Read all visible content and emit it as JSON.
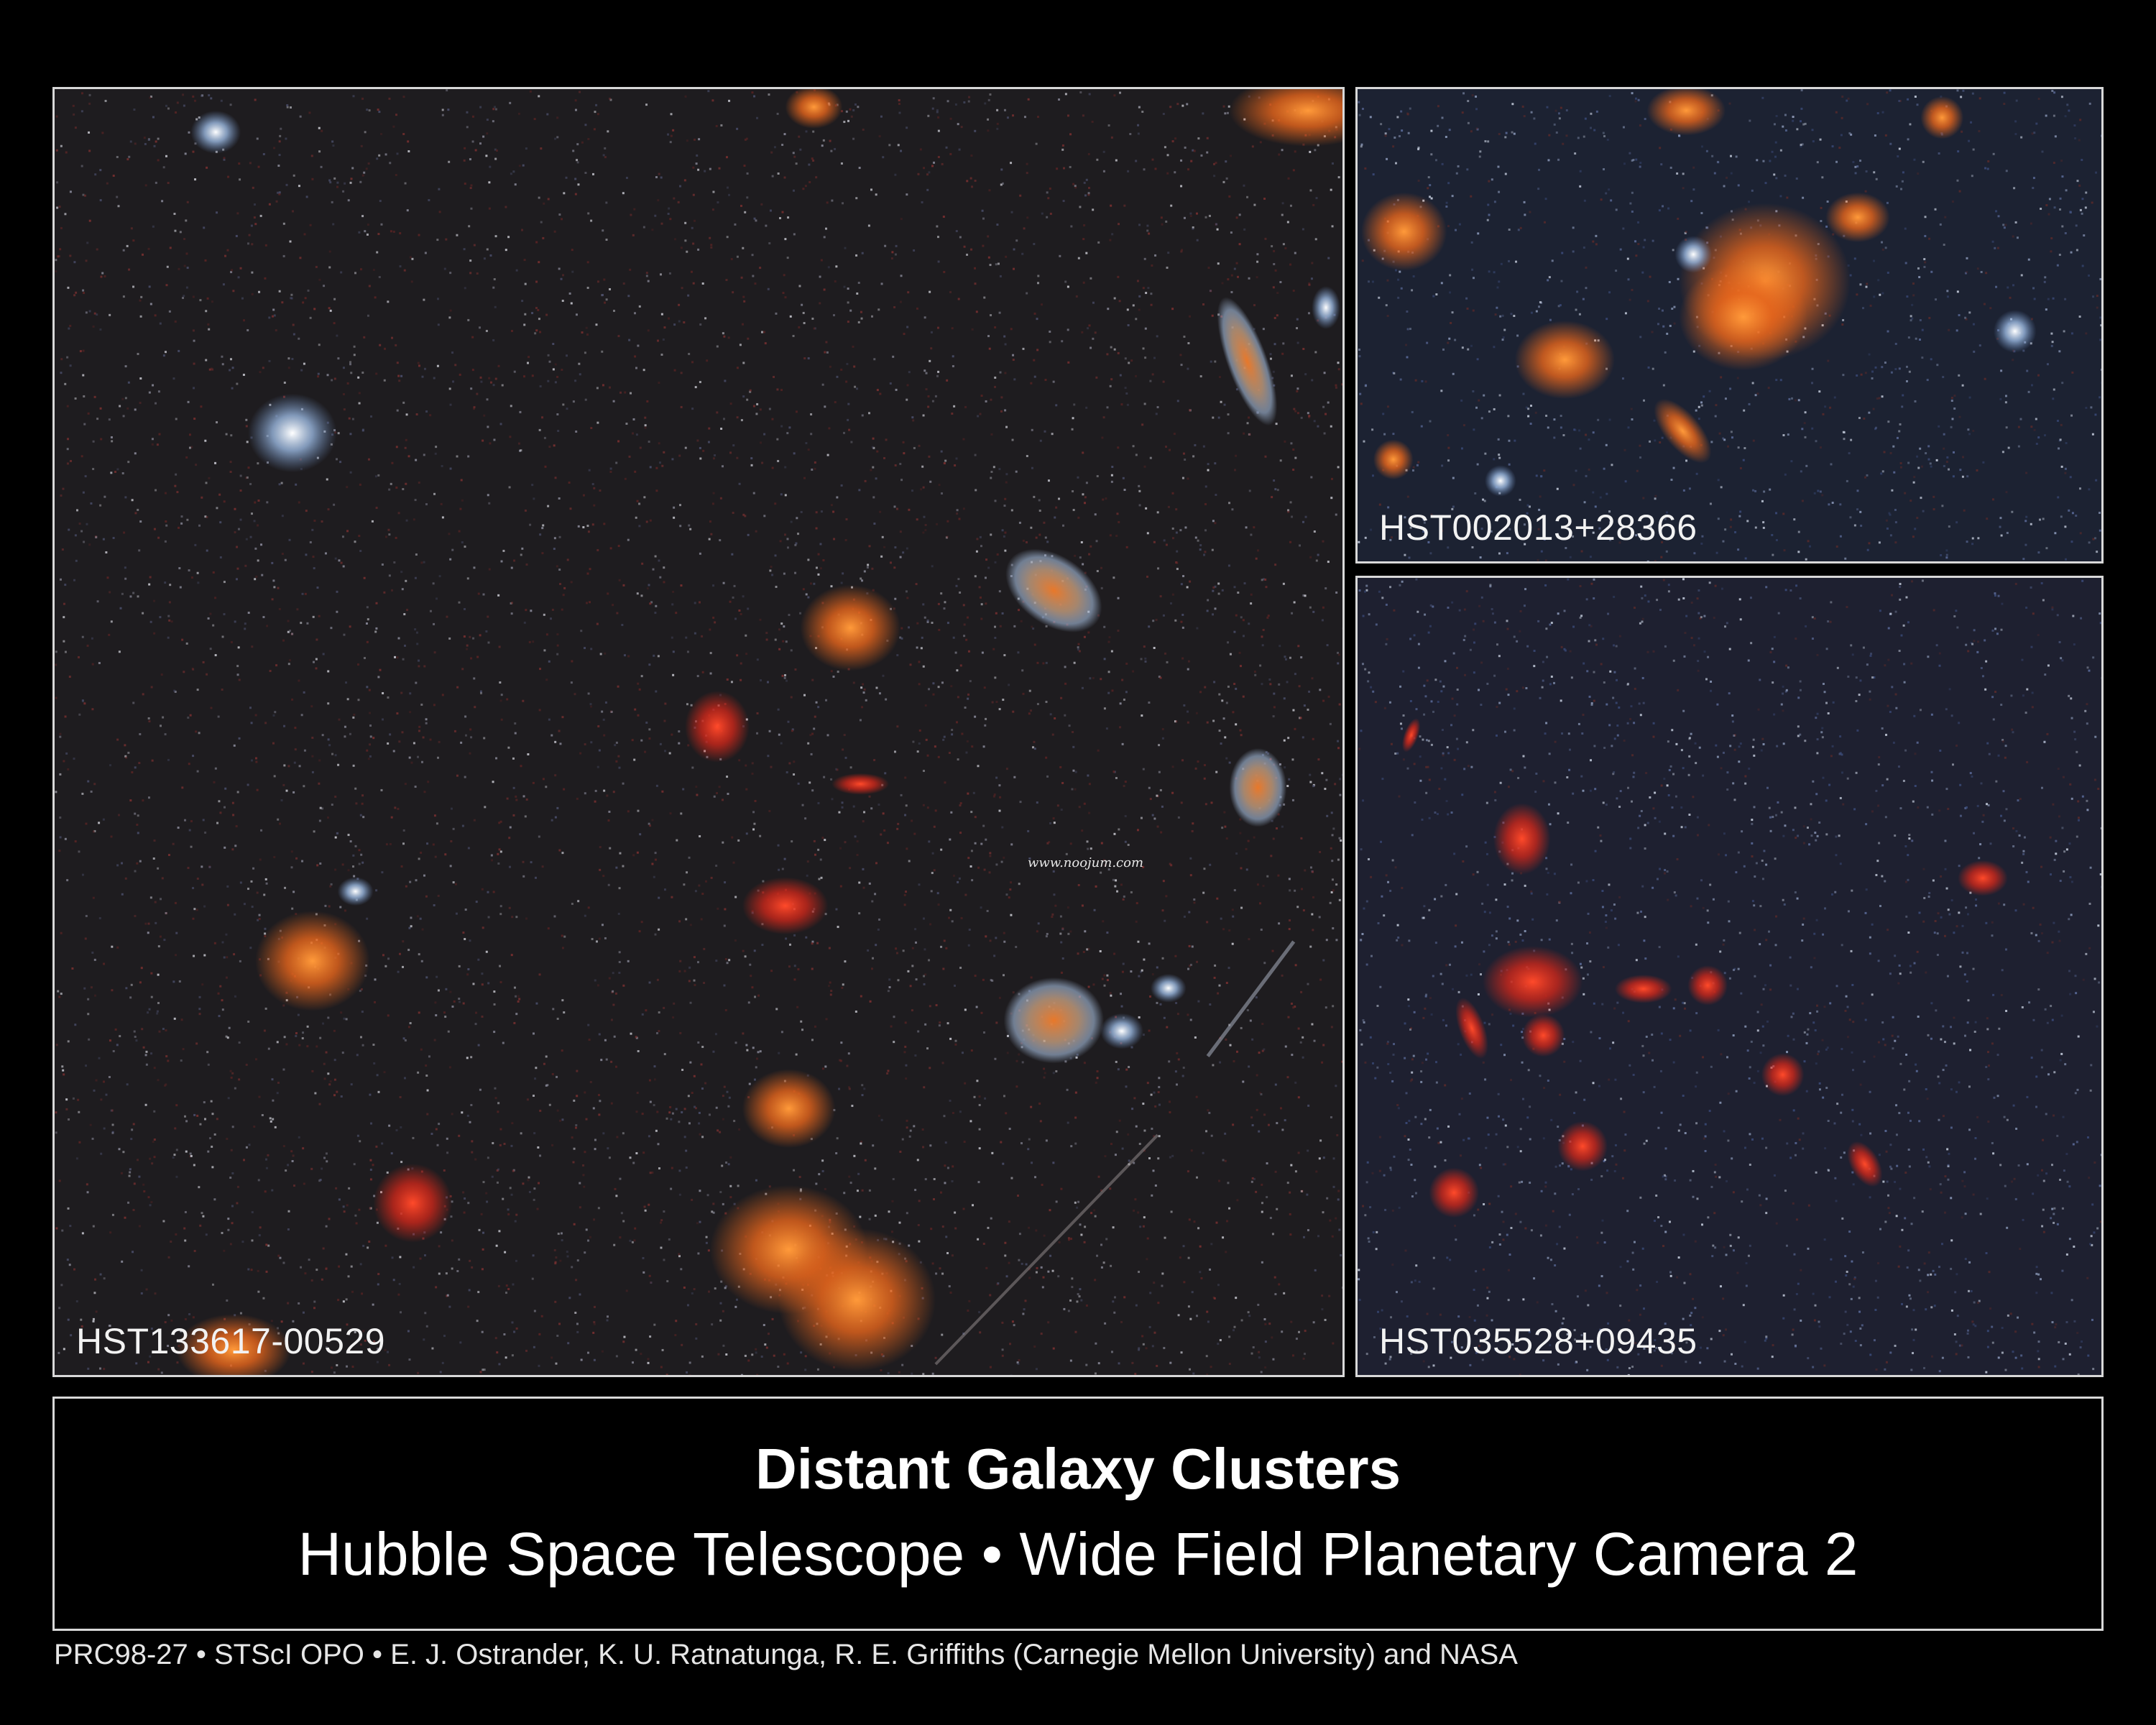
{
  "panels": [
    {
      "label": "HST133617-00529"
    },
    {
      "label": "HST002013+28366"
    },
    {
      "label": "HST035528+09435"
    }
  ],
  "watermark": "www.noojum.com",
  "caption": {
    "title": "Distant Galaxy Clusters",
    "subtitle": "Hubble Space Telescope • Wide Field Planetary Camera 2"
  },
  "credit": "PRC98-27 • STScI OPO • E. J. Ostrander, K. U. Ratnatunga, R. E. Griffiths (Carnegie Mellon University) and NASA",
  "colors": {
    "border": "#d8d8d8",
    "sky_main": "#1e1c1f",
    "sky_blue": "#1c2232",
    "galaxy_orange": "#e86a1c",
    "galaxy_red": "#d8281a",
    "galaxy_blue": "#b8cde8"
  }
}
